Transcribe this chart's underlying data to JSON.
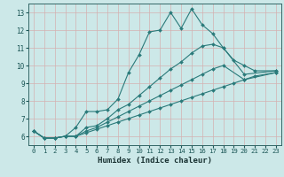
{
  "title": "",
  "xlabel": "Humidex (Indice chaleur)",
  "xlim": [
    -0.5,
    23.5
  ],
  "ylim": [
    5.5,
    13.5
  ],
  "xticks": [
    0,
    1,
    2,
    3,
    4,
    5,
    6,
    7,
    8,
    9,
    10,
    11,
    12,
    13,
    14,
    15,
    16,
    17,
    18,
    19,
    20,
    21,
    22,
    23
  ],
  "yticks": [
    6,
    7,
    8,
    9,
    10,
    11,
    12,
    13
  ],
  "bg_color": "#cce8e8",
  "grid_color": "#d4b0b0",
  "line_color": "#2a7a7a",
  "series_x": [
    [
      0,
      1,
      2,
      3,
      4,
      5,
      6,
      7,
      8,
      9,
      10,
      11,
      12,
      13,
      14,
      15,
      16,
      17,
      18,
      19,
      20,
      21,
      23
    ],
    [
      0,
      1,
      2,
      3,
      4,
      5,
      6,
      7,
      8,
      9,
      10,
      11,
      12,
      13,
      14,
      15,
      16,
      17,
      18,
      20,
      23
    ],
    [
      0,
      1,
      2,
      3,
      4,
      5,
      6,
      7,
      8,
      9,
      10,
      11,
      12,
      13,
      14,
      15,
      16,
      17,
      18,
      20,
      23
    ],
    [
      0,
      1,
      2,
      3,
      4,
      5,
      6,
      7,
      8,
      9,
      10,
      11,
      12,
      13,
      14,
      15,
      16,
      17,
      18,
      19,
      20,
      21,
      23
    ]
  ],
  "series_y": [
    [
      6.3,
      5.9,
      5.9,
      6.0,
      6.5,
      7.4,
      7.4,
      7.5,
      8.1,
      9.6,
      10.6,
      11.9,
      12.0,
      13.0,
      12.1,
      13.2,
      12.3,
      11.8,
      11.0,
      10.3,
      10.0,
      9.7,
      9.7
    ],
    [
      6.3,
      5.9,
      5.9,
      6.0,
      6.0,
      6.5,
      6.6,
      7.0,
      7.5,
      7.8,
      8.3,
      8.8,
      9.3,
      9.8,
      10.2,
      10.7,
      11.1,
      11.2,
      11.0,
      9.5,
      9.7
    ],
    [
      6.3,
      5.9,
      5.9,
      6.0,
      6.0,
      6.3,
      6.5,
      6.8,
      7.1,
      7.4,
      7.7,
      8.0,
      8.3,
      8.6,
      8.9,
      9.2,
      9.5,
      9.8,
      10.0,
      9.2,
      9.6
    ],
    [
      6.3,
      5.9,
      5.9,
      6.0,
      6.0,
      6.2,
      6.4,
      6.6,
      6.8,
      7.0,
      7.2,
      7.4,
      7.6,
      7.8,
      8.0,
      8.2,
      8.4,
      8.6,
      8.8,
      9.0,
      9.2,
      9.4,
      9.6
    ]
  ]
}
